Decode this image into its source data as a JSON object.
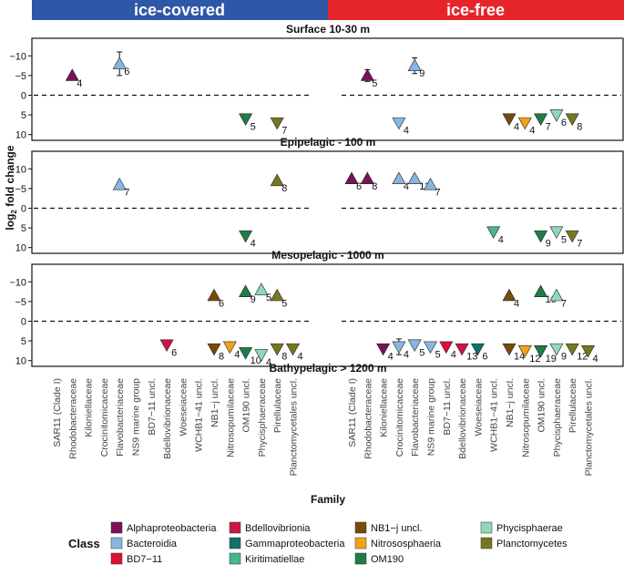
{
  "chart_data": {
    "type": "scatter",
    "header": {
      "ice_covered": {
        "label": "ice-covered",
        "color": "#2e57a8"
      },
      "ice_free": {
        "label": "ice-free",
        "color": "#e5252a"
      }
    },
    "families": [
      "SAR11 (Clade I)",
      "Rhodobacteraceae",
      "Kiloniellaceae",
      "Crocinitomicaceae",
      "Flavobacteriaceae",
      "NS9 marine group",
      "BD7−11 uncl.",
      "Bdellovibrionaceae",
      "Woeseiaceae",
      "WCHB1−41 uncl.",
      "NB1−j uncl.",
      "Nitrosopumilaceae",
      "OM190 uncl.",
      "Phycisphaeraceae",
      "Pirellulaceae",
      "Planctomycetales uncl."
    ],
    "xlabel": "Family",
    "ylabel_main": "log",
    "ylabel_sub": "2",
    "ylabel_tail": " fold change",
    "y_axis": {
      "reversed": true,
      "ylim": [
        -14,
        11
      ],
      "ticks": [
        -10,
        -5,
        0,
        5,
        10
      ],
      "tick_labels": [
        "−10",
        "−5",
        "0",
        "5",
        "10"
      ]
    },
    "classes": [
      {
        "name": "Alphaproteobacteria",
        "color": "#7d1257"
      },
      {
        "name": "Bacteroidia",
        "color": "#88b6e0"
      },
      {
        "name": "BD7−11",
        "color": "#dd1034"
      },
      {
        "name": "Bdellovibrionia",
        "color": "#cc1643"
      },
      {
        "name": "Gammaproteobacteria",
        "color": "#12706a"
      },
      {
        "name": "Kiritimatiellae",
        "color": "#47b78f"
      },
      {
        "name": "NB1−j uncl.",
        "color": "#7a4a0d"
      },
      {
        "name": "Nitrososphaeria",
        "color": "#f0a41a"
      },
      {
        "name": "OM190",
        "color": "#1e7c48"
      },
      {
        "name": "Phycisphaerae",
        "color": "#8fd8b8"
      },
      {
        "name": "Planctomycetes",
        "color": "#76781d"
      }
    ],
    "legend_title": "Class",
    "panels": [
      {
        "title": "Surface 10-30 m",
        "points": [
          {
            "cond": 0,
            "family": "Rhodobacteraceae",
            "y": -5,
            "n": "4",
            "cls": 0
          },
          {
            "cond": 0,
            "family": "Flavobacteriaceae",
            "y": -8,
            "err": 3,
            "n": "6",
            "cls": 1
          },
          {
            "cond": 0,
            "family": "OM190 uncl.",
            "y": 6,
            "n": "5",
            "cls": 8
          },
          {
            "cond": 0,
            "family": "Pirellulaceae",
            "y": 7,
            "n": "7",
            "cls": 10
          },
          {
            "cond": 1,
            "family": "Rhodobacteraceae",
            "y": -5,
            "err": 1.5,
            "n": "5",
            "cls": 0
          },
          {
            "cond": 1,
            "family": "Flavobacteriaceae",
            "y": -7.5,
            "err": 2,
            "n": "9",
            "cls": 1
          },
          {
            "cond": 1,
            "family": "Crocinitomicaceae",
            "y": 7,
            "n": "4",
            "cls": 1
          },
          {
            "cond": 1,
            "family": "NB1−j uncl.",
            "y": 6,
            "n": "4",
            "cls": 6
          },
          {
            "cond": 1,
            "family": "Nitrosopumilaceae",
            "y": 7,
            "n": "4",
            "cls": 7
          },
          {
            "cond": 1,
            "family": "OM190 uncl.",
            "y": 6,
            "n": "7",
            "cls": 8
          },
          {
            "cond": 1,
            "family": "Phycisphaeraceae",
            "y": 5,
            "n": "6",
            "cls": 9
          },
          {
            "cond": 1,
            "family": "Pirellulaceae",
            "y": 6,
            "n": "8",
            "cls": 10
          }
        ]
      },
      {
        "title": "Epipelagic - 100 m",
        "points": [
          {
            "cond": 0,
            "family": "Flavobacteriaceae",
            "y": -6,
            "n": "7",
            "cls": 1
          },
          {
            "cond": 0,
            "family": "Pirellulaceae",
            "y": -7,
            "n": "8",
            "cls": 10
          },
          {
            "cond": 0,
            "family": "OM190 uncl.",
            "y": 7,
            "n": "4",
            "cls": 8
          },
          {
            "cond": 1,
            "family": "SAR11 (Clade I)",
            "y": -7.5,
            "n": "6",
            "cls": 0
          },
          {
            "cond": 1,
            "family": "Rhodobacteraceae",
            "y": -7.5,
            "n": "8",
            "cls": 0
          },
          {
            "cond": 1,
            "family": "Crocinitomicaceae",
            "y": -7.5,
            "n": "4",
            "cls": 1
          },
          {
            "cond": 1,
            "family": "Flavobacteriaceae",
            "y": -7.5,
            "n": "13",
            "cls": 1
          },
          {
            "cond": 1,
            "family": "NS9 marine group",
            "y": -6,
            "n": "7",
            "cls": 1
          },
          {
            "cond": 1,
            "family": "WCHB1−41 uncl.",
            "y": 6,
            "n": "4",
            "cls": 5
          },
          {
            "cond": 1,
            "family": "OM190 uncl.",
            "y": 7,
            "n": "9",
            "cls": 8
          },
          {
            "cond": 1,
            "family": "Phycisphaeraceae",
            "y": 6,
            "n": "5",
            "cls": 9
          },
          {
            "cond": 1,
            "family": "Pirellulaceae",
            "y": 7,
            "n": "7",
            "cls": 10
          }
        ]
      },
      {
        "title": "Mesopelagic - 1000 m",
        "points": [
          {
            "cond": 0,
            "family": "NB1−j uncl.",
            "y": -6.5,
            "n": "6",
            "cls": 6
          },
          {
            "cond": 0,
            "family": "OM190 uncl.",
            "y": -7.5,
            "n": "9",
            "cls": 8
          },
          {
            "cond": 0,
            "family": "Phycisphaeraceae",
            "y": -8,
            "n": "5",
            "cls": 9
          },
          {
            "cond": 0,
            "family": "Pirellulaceae",
            "y": -6.5,
            "n": "5",
            "cls": 10
          },
          {
            "cond": 0,
            "family": "Bdellovibrionaceae",
            "y": 6,
            "n": "6",
            "cls": 3
          },
          {
            "cond": 0,
            "family": "NB1−j uncl.",
            "y": 7,
            "n": "8",
            "cls": 6
          },
          {
            "cond": 0,
            "family": "Nitrosopumilaceae",
            "y": 6.5,
            "n": "4",
            "cls": 7
          },
          {
            "cond": 0,
            "family": "OM190 uncl.",
            "y": 8,
            "n": "10",
            "cls": 8
          },
          {
            "cond": 0,
            "family": "Phycisphaeraceae",
            "y": 8.5,
            "n": "4",
            "cls": 9
          },
          {
            "cond": 0,
            "family": "Pirellulaceae",
            "y": 7,
            "n": "8",
            "cls": 10
          },
          {
            "cond": 0,
            "family": "Planctomycetales uncl.",
            "y": 7,
            "n": "4",
            "cls": 10
          },
          {
            "cond": 1,
            "family": "NB1−j uncl.",
            "y": -6.5,
            "n": "4",
            "cls": 6
          },
          {
            "cond": 1,
            "family": "OM190 uncl.",
            "y": -7.5,
            "n": "10",
            "cls": 8
          },
          {
            "cond": 1,
            "family": "Phycisphaeraceae",
            "y": -6.5,
            "n": "7",
            "cls": 9
          },
          {
            "cond": 1,
            "family": "Kiloniellaceae",
            "y": 7,
            "n": "4",
            "cls": 0
          },
          {
            "cond": 1,
            "family": "Crocinitomicaceae",
            "y": 6.5,
            "err": 2,
            "n": "4",
            "cls": 1
          },
          {
            "cond": 1,
            "family": "Flavobacteriaceae",
            "y": 6,
            "n": "5",
            "cls": 1
          },
          {
            "cond": 1,
            "family": "NS9 marine group",
            "y": 6.5,
            "n": "5",
            "cls": 1
          },
          {
            "cond": 1,
            "family": "BD7−11 uncl.",
            "y": 6.5,
            "n": "4",
            "cls": 2
          },
          {
            "cond": 1,
            "family": "Bdellovibrionaceae",
            "y": 7,
            "n": "13",
            "cls": 3
          },
          {
            "cond": 1,
            "family": "Woeseiaceae",
            "y": 7,
            "n": "6",
            "cls": 4
          },
          {
            "cond": 1,
            "family": "NB1−j uncl.",
            "y": 7,
            "n": "14",
            "cls": 6
          },
          {
            "cond": 1,
            "family": "Nitrosopumilaceae",
            "y": 7.5,
            "n": "12",
            "cls": 7
          },
          {
            "cond": 1,
            "family": "OM190 uncl.",
            "y": 7.5,
            "n": "19",
            "cls": 8
          },
          {
            "cond": 1,
            "family": "Phycisphaeraceae",
            "y": 7,
            "n": "9",
            "cls": 9
          },
          {
            "cond": 1,
            "family": "Pirellulaceae",
            "y": 7,
            "n": "12",
            "cls": 10
          },
          {
            "cond": 1,
            "family": "Planctomycetales uncl.",
            "y": 7.5,
            "n": "4",
            "cls": 10
          }
        ]
      }
    ],
    "bottom_title": "Bathypelagic > 1200 m"
  }
}
